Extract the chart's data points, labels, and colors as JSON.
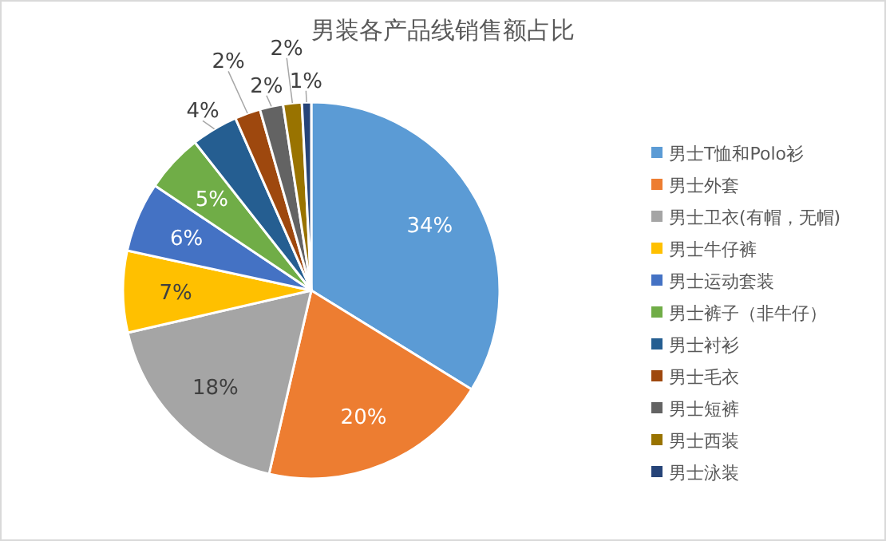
{
  "chart_data": {
    "type": "pie",
    "title": "男装各产品线销售额占比",
    "categories": [
      "男士T恤和Polo衫",
      "男士外套",
      "男士卫衣(有帽，无帽)",
      "男士牛仔裤",
      "男士运动套装",
      "男士裤子（非牛仔）",
      "男士衬衫",
      "男士毛衣",
      "男士短裤",
      "男士西装",
      "男士泳装"
    ],
    "values": [
      33.8,
      19.8,
      17.8,
      7,
      6,
      5,
      4,
      2.2,
      2,
      1.6,
      0.8
    ],
    "value_labels": [
      "34%",
      "20%",
      "18%",
      "7%",
      "6%",
      "5%",
      "4%",
      "2%",
      "2%",
      "2%",
      "1%"
    ],
    "colors": [
      "#5b9bd5",
      "#ed7d31",
      "#a5a5a5",
      "#ffc000",
      "#4472c4",
      "#70ad47",
      "#255e91",
      "#9e480e",
      "#636363",
      "#997300",
      "#264478"
    ],
    "legend": "right"
  }
}
